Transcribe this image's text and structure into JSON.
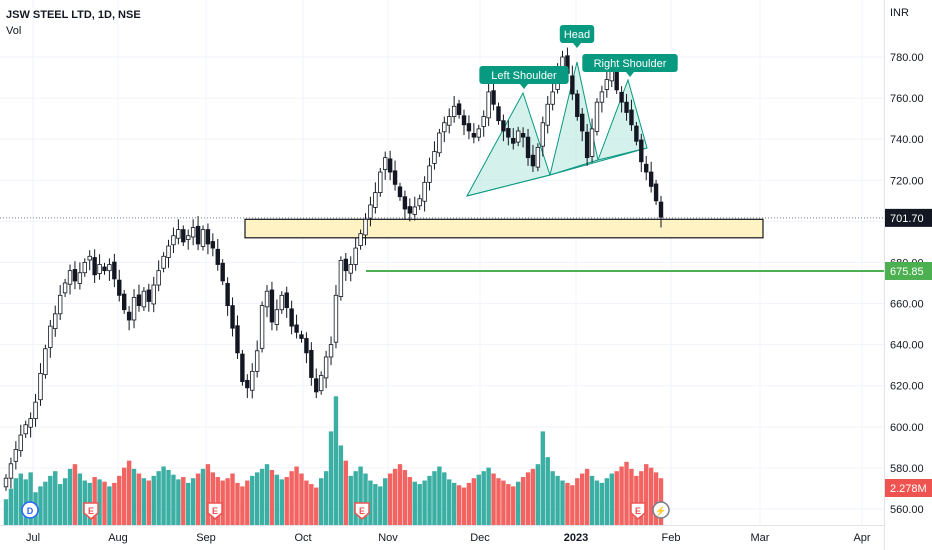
{
  "header": {
    "symbol_label": "JSW STEEL LTD, 1D, NSE",
    "volume_label": "Vol"
  },
  "axis": {
    "currency": "INR"
  },
  "colors": {
    "up": "#26a69a",
    "down": "#ef5350",
    "candle": "#131722",
    "zone_fill": "#fff3c4",
    "support_line": "#4caf50",
    "pattern_fill": "#b2e6dd",
    "pattern_line": "#089981",
    "label_bg": "#089981",
    "grid": "#f0f3fa",
    "last_price_bg": "#131722",
    "volume_tag_bg": "#ef5350"
  },
  "pattern_labels": [
    {
      "text": "Left Shoulder"
    },
    {
      "text": "Head"
    },
    {
      "text": "Right Shoulder"
    }
  ],
  "price_tags": {
    "last": "701.70",
    "support": "675.85",
    "volume": "2.278M"
  },
  "event_badges": [
    {
      "letter": "D",
      "icon": "dividend-badge-icon"
    },
    {
      "letter": "E",
      "icon": "earnings-badge-icon"
    },
    {
      "letter": "E",
      "icon": "earnings-badge-icon"
    },
    {
      "letter": "E",
      "icon": "earnings-badge-icon"
    },
    {
      "letter": "E",
      "icon": "earnings-badge-icon"
    },
    {
      "letter": "⚡",
      "icon": "lightning-icon"
    }
  ],
  "chart_data": {
    "type": "candlestick",
    "title": "JSW STEEL LTD, 1D, NSE",
    "ylim": [
      555,
      800
    ],
    "y_ticks": [
      "560.00",
      "580.00",
      "600.00",
      "620.00",
      "640.00",
      "660.00",
      "680.00",
      "700.00",
      "720.00",
      "740.00",
      "760.00",
      "780.00"
    ],
    "x_ticks": [
      "Jul",
      "Aug",
      "Sep",
      "Oct",
      "Nov",
      "Dec",
      "2023",
      "Feb",
      "Mar",
      "Apr"
    ],
    "last_price": 701.7,
    "support_level": 675.85,
    "resistance_zone": [
      692,
      701
    ],
    "closes": [
      575,
      582,
      589,
      596,
      601,
      604,
      612,
      626,
      638,
      649,
      655,
      664,
      670,
      676,
      671,
      675,
      680,
      683,
      674,
      679,
      676,
      679,
      672,
      664,
      657,
      652,
      663,
      659,
      666,
      661,
      669,
      676,
      683,
      688,
      693,
      696,
      690,
      693,
      697,
      689,
      696,
      689,
      687,
      679,
      671,
      659,
      648,
      636,
      622,
      619,
      627,
      637,
      659,
      666,
      651,
      657,
      664,
      658,
      649,
      646,
      643,
      636,
      624,
      617,
      625,
      634,
      640,
      664,
      681,
      676,
      679,
      687,
      694,
      701,
      708,
      714,
      724,
      731,
      724,
      718,
      712,
      706,
      704,
      707,
      711,
      719,
      727,
      734,
      743,
      748,
      751,
      756,
      752,
      747,
      744,
      741,
      745,
      751,
      763,
      757,
      749,
      744,
      741,
      738,
      744,
      741,
      731,
      727,
      736,
      748,
      757,
      763,
      775,
      780,
      772,
      762,
      751,
      744,
      731,
      745,
      758,
      763,
      769,
      773,
      764,
      758,
      753,
      747,
      739,
      729,
      724,
      717,
      710,
      702
    ],
    "volume": [
      22,
      31,
      40,
      44,
      39,
      45,
      28,
      33,
      37,
      42,
      46,
      35,
      40,
      48,
      52,
      44,
      38,
      36,
      41,
      39,
      37,
      33,
      36,
      42,
      49,
      55,
      48,
      44,
      40,
      38,
      42,
      46,
      50,
      47,
      43,
      39,
      41,
      36,
      40,
      44,
      48,
      52,
      45,
      41,
      38,
      40,
      44,
      36,
      33,
      38,
      42,
      45,
      48,
      52,
      47,
      43,
      39,
      41,
      46,
      50,
      44,
      38,
      35,
      32,
      40,
      46,
      80,
      110,
      68,
      55,
      42,
      46,
      50,
      44,
      38,
      35,
      33,
      40,
      44,
      48,
      52,
      47,
      41,
      37,
      35,
      38,
      42,
      46,
      50,
      45,
      39,
      36,
      34,
      32,
      36,
      40,
      43,
      46,
      49,
      44,
      40,
      38,
      35,
      33,
      37,
      41,
      45,
      48,
      52,
      80,
      58,
      46,
      42,
      38,
      36,
      34,
      40,
      44,
      48,
      42,
      38,
      36,
      40,
      44,
      46,
      50,
      54,
      48,
      42,
      46,
      52,
      49,
      45,
      40
    ]
  }
}
